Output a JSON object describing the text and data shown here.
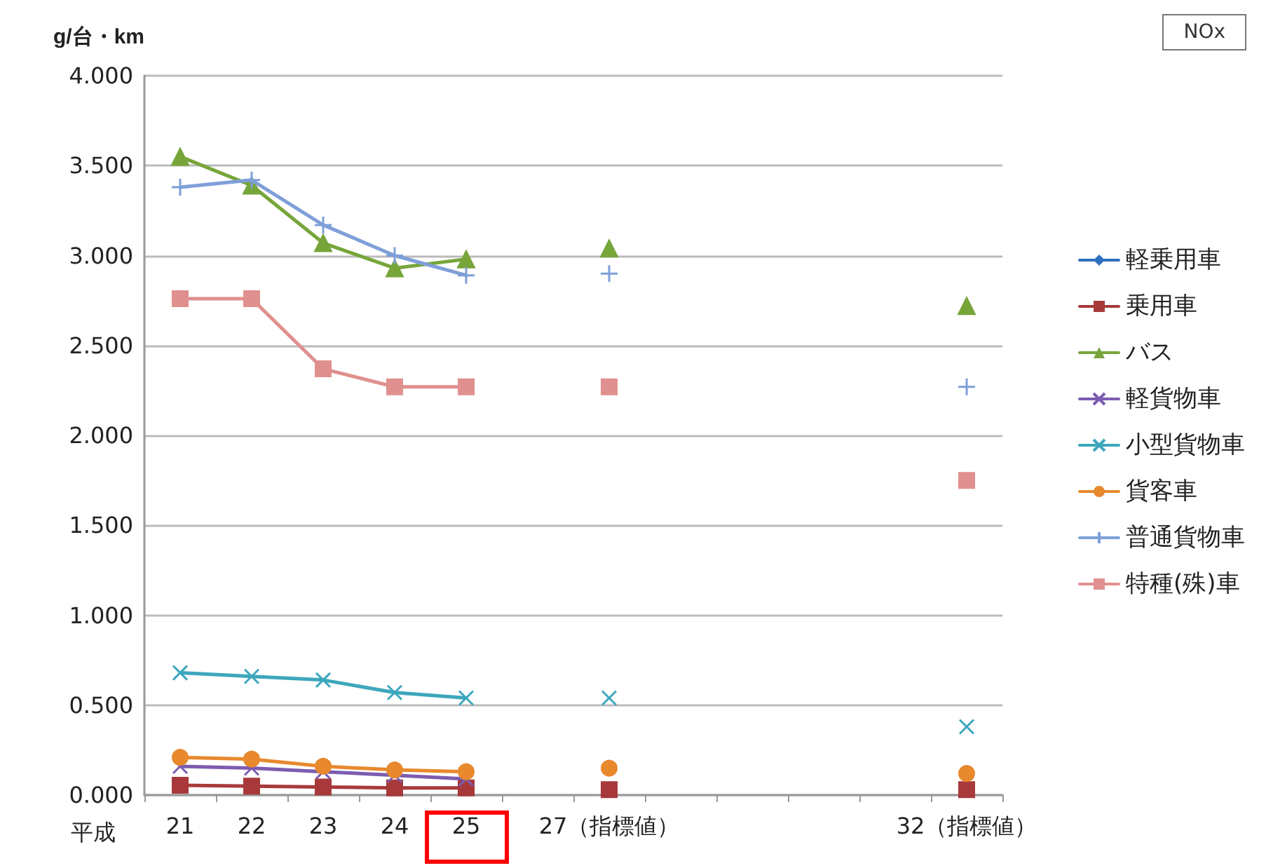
{
  "chart_data": {
    "type": "line",
    "ylabel": "g/台・km",
    "annotations": [
      "NOx",
      "平成"
    ],
    "categories": [
      "21",
      "22",
      "23",
      "24",
      "25",
      null,
      "27（指標値）",
      null,
      null,
      null,
      null,
      "32（指標値）"
    ],
    "ylim": [
      0,
      4
    ],
    "yticks": [
      {
        "value": 0,
        "label": "0.000"
      },
      {
        "value": 0.5,
        "label": "0.500"
      },
      {
        "value": 1,
        "label": "1.000"
      },
      {
        "value": 1.5,
        "label": "1.500"
      },
      {
        "value": 2,
        "label": "2.000"
      },
      {
        "value": 2.5,
        "label": "2.500"
      },
      {
        "value": 3,
        "label": "3.000"
      },
      {
        "value": 3.5,
        "label": "3.500"
      },
      {
        "value": 4,
        "label": "4.000"
      }
    ],
    "grid": "y",
    "legend": "right",
    "series": [
      {
        "name": "軽乗用車",
        "color": "#2e6fbf",
        "marker": "diamond",
        "values": [
          null,
          null,
          null,
          null,
          null,
          null,
          null,
          null,
          null,
          null,
          null,
          null
        ]
      },
      {
        "name": "乗用車",
        "color": "#a8393b",
        "marker": "square",
        "values": [
          0.055,
          0.05,
          0.045,
          0.04,
          0.04,
          null,
          0.03,
          null,
          null,
          null,
          null,
          0.03
        ]
      },
      {
        "name": "バス",
        "color": "#77a53a",
        "marker": "triangle",
        "values": [
          3.55,
          3.39,
          3.07,
          2.93,
          2.98,
          null,
          3.04,
          null,
          null,
          null,
          null,
          2.72
        ]
      },
      {
        "name": "軽貨物車",
        "color": "#7c5cb0",
        "marker": "cross",
        "values": [
          0.16,
          0.15,
          0.13,
          0.11,
          0.09,
          null,
          null,
          null,
          null,
          null,
          null,
          null
        ]
      },
      {
        "name": "小型貨物車",
        "color": "#3ca7bd",
        "marker": "cross",
        "values": [
          0.68,
          0.66,
          0.64,
          0.57,
          0.54,
          null,
          0.54,
          null,
          null,
          null,
          null,
          0.38
        ]
      },
      {
        "name": "貨客車",
        "color": "#e8892e",
        "marker": "circle",
        "values": [
          0.21,
          0.2,
          0.16,
          0.14,
          0.13,
          null,
          0.15,
          null,
          null,
          null,
          null,
          0.12
        ]
      },
      {
        "name": "普通貨物車",
        "color": "#7f9fd8",
        "marker": "cross",
        "values": [
          3.38,
          3.42,
          3.17,
          3.0,
          2.89,
          null,
          2.9,
          null,
          null,
          null,
          null,
          2.27
        ]
      },
      {
        "name": "特種(殊)車",
        "color": "#e0908e",
        "marker": "square",
        "values": [
          2.76,
          2.76,
          2.37,
          2.27,
          2.27,
          null,
          2.27,
          null,
          null,
          null,
          null,
          1.75
        ]
      }
    ]
  }
}
